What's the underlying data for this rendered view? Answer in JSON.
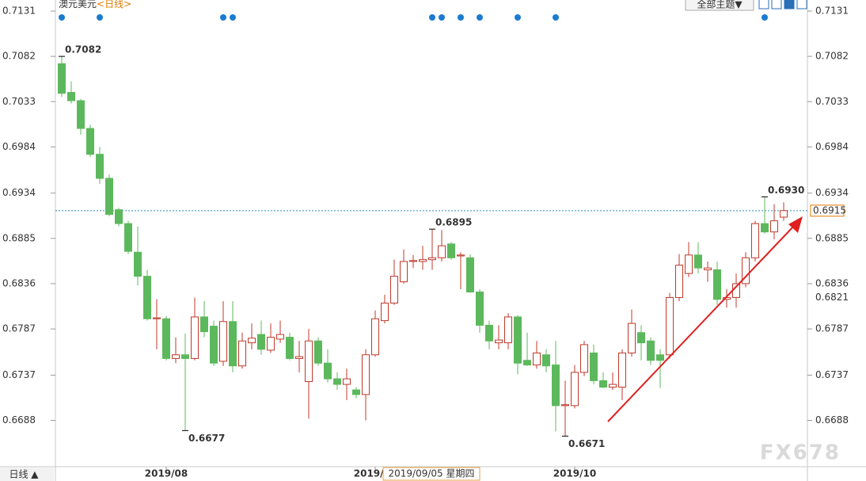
{
  "chart_data": {
    "type": "candlestick",
    "title": "澳元美元",
    "subtitle": "<日线>",
    "categories": [
      null,
      null,
      null,
      null,
      null,
      null,
      null,
      null,
      null,
      null,
      null,
      "2019/08",
      null,
      null,
      null,
      null,
      null,
      null,
      null,
      null,
      null,
      null,
      null,
      null,
      null,
      null,
      null,
      null,
      null,
      null,
      null,
      null,
      null,
      "2019/09",
      null,
      null,
      null,
      null,
      null,
      null,
      null,
      null,
      null,
      null,
      null,
      null,
      null,
      null,
      null,
      null,
      null,
      null,
      null,
      null,
      "2019/10",
      null,
      null,
      null,
      null,
      null,
      null,
      null,
      null,
      null,
      null,
      null,
      null,
      null,
      null,
      null,
      null,
      null,
      null,
      null,
      null,
      null,
      null
    ],
    "open": [
      0.7074,
      0.7043,
      0.7034,
      0.7004,
      0.6976,
      0.695,
      0.6916,
      0.6901,
      0.687,
      0.6844,
      0.6798,
      0.6798,
      0.6755,
      0.6759,
      0.6755,
      0.68,
      0.679,
      0.6752,
      0.6795,
      0.6747,
      0.6772,
      0.6781,
      0.6764,
      0.6776,
      0.6778,
      0.6755,
      0.673,
      0.6774,
      0.675,
      0.6733,
      0.6727,
      0.6721,
      0.6716,
      0.6759,
      0.6796,
      0.6815,
      0.6838,
      0.686,
      0.686,
      0.6862,
      0.6864,
      0.6879,
      0.6866,
      0.6864,
      0.6827,
      0.6791,
      0.6772,
      0.6772,
      0.68,
      0.6753,
      0.6748,
      0.6759,
      0.6748,
      0.6704,
      0.6704,
      0.674,
      0.6761,
      0.6731,
      0.6724,
      0.6724,
      0.6761,
      0.6783,
      0.6774,
      0.6759,
      0.6759,
      0.6821,
      0.6847,
      0.6867,
      0.6851,
      0.6851,
      0.6819,
      0.6821,
      0.6836,
      0.6864,
      0.6901,
      0.6892,
      0.6908
    ],
    "high": [
      0.7082,
      0.7055,
      0.7036,
      0.7008,
      0.6984,
      0.6954,
      0.6918,
      0.6904,
      0.6898,
      0.6851,
      0.6819,
      0.6801,
      0.6778,
      0.6782,
      0.6821,
      0.6817,
      0.6796,
      0.6817,
      0.6817,
      0.6783,
      0.6793,
      0.6796,
      0.6793,
      0.6796,
      0.6783,
      0.6774,
      0.6787,
      0.6778,
      0.6765,
      0.674,
      0.6744,
      0.6724,
      0.6765,
      0.6807,
      0.6824,
      0.6862,
      0.6873,
      0.6867,
      0.6877,
      0.6895,
      0.6894,
      0.6881,
      0.687,
      0.6868,
      0.683,
      0.6796,
      0.6791,
      0.6804,
      0.6802,
      0.6783,
      0.6774,
      0.6765,
      0.6774,
      0.6731,
      0.6748,
      0.6774,
      0.677,
      0.674,
      0.674,
      0.6765,
      0.6808,
      0.6791,
      0.6778,
      0.6765,
      0.6826,
      0.6868,
      0.6881,
      0.6881,
      0.686,
      0.686,
      0.683,
      0.6847,
      0.687,
      0.6904,
      0.693,
      0.6922,
      0.6924
    ],
    "low": [
      0.7038,
      0.7031,
      0.6997,
      0.6973,
      0.6944,
      0.6909,
      0.6898,
      0.6868,
      0.6834,
      0.6796,
      0.6765,
      0.6753,
      0.675,
      0.6677,
      0.6753,
      0.6778,
      0.6747,
      0.6747,
      0.674,
      0.6744,
      0.6765,
      0.6759,
      0.6761,
      0.6772,
      0.6753,
      0.674,
      0.669,
      0.6747,
      0.6729,
      0.6721,
      0.671,
      0.6712,
      0.6688,
      0.6757,
      0.6793,
      0.6813,
      0.6836,
      0.6853,
      0.6851,
      0.6851,
      0.686,
      0.6862,
      0.683,
      0.6826,
      0.6783,
      0.6765,
      0.6765,
      0.6765,
      0.6738,
      0.6747,
      0.6744,
      0.674,
      0.6676,
      0.6671,
      0.6701,
      0.6736,
      0.6727,
      0.6723,
      0.6721,
      0.671,
      0.6757,
      0.6753,
      0.6748,
      0.6723,
      0.6755,
      0.6817,
      0.6843,
      0.6847,
      0.6838,
      0.6813,
      0.681,
      0.681,
      0.6832,
      0.686,
      0.689,
      0.6884,
      0.6904
    ],
    "close": [
      0.7042,
      0.7034,
      0.7004,
      0.6976,
      0.695,
      0.6911,
      0.6901,
      0.6871,
      0.6844,
      0.6798,
      0.6799,
      0.6755,
      0.6759,
      0.6755,
      0.68,
      0.6784,
      0.675,
      0.6795,
      0.6747,
      0.6774,
      0.6777,
      0.6765,
      0.6778,
      0.6781,
      0.6755,
      0.6757,
      0.6774,
      0.675,
      0.6733,
      0.6727,
      0.6733,
      0.6716,
      0.6759,
      0.6798,
      0.6815,
      0.6844,
      0.686,
      0.6861,
      0.6862,
      0.6864,
      0.6877,
      0.6864,
      0.6867,
      0.6827,
      0.6791,
      0.6774,
      0.6775,
      0.68,
      0.675,
      0.6748,
      0.6761,
      0.6747,
      0.6704,
      0.6705,
      0.674,
      0.677,
      0.6731,
      0.6724,
      0.6727,
      0.6761,
      0.6793,
      0.6772,
      0.6753,
      0.6753,
      0.6821,
      0.6856,
      0.6867,
      0.6853,
      0.6853,
      0.6819,
      0.6821,
      0.6836,
      0.6864,
      0.6901,
      0.6892,
      0.6904,
      0.6915
    ],
    "up_color": "#c0392b",
    "down_color": "#5cb85c",
    "ylim": [
      0.6637,
      0.7143
    ],
    "yticks": [
      0.6688,
      0.6737,
      0.6787,
      0.6836,
      0.6885,
      0.6934,
      0.6984,
      0.7033,
      0.7082,
      0.7131
    ],
    "current_price": 0.6915,
    "marked_price": 0.6821,
    "annotations": [
      {
        "label": "0.7082",
        "value": 0.7082
      },
      {
        "label": "0.6895",
        "value": 0.6895
      },
      {
        "label": "0.6930",
        "value": 0.693
      },
      {
        "label": "0.6677",
        "value": 0.6677
      },
      {
        "label": "0.6671",
        "value": 0.6671
      }
    ]
  },
  "toolbar": {
    "theme_button": "全部主题▼",
    "period_button": "日线 ▲"
  },
  "crosshair_date": "2019/09/05 星期四",
  "watermark": "FX678"
}
